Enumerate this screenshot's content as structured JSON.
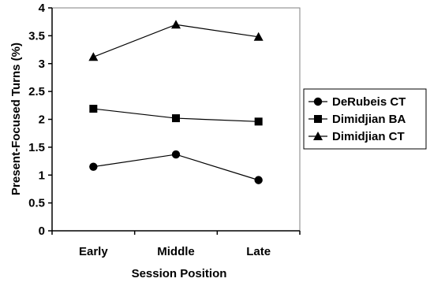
{
  "chart_data": {
    "type": "line",
    "title": "",
    "xlabel": "Session Position",
    "ylabel": "Present-Focused Turns (%)",
    "categories": [
      "Early",
      "Middle",
      "Late"
    ],
    "ylim": [
      0,
      4
    ],
    "yticks": [
      "0",
      "0.5",
      "1",
      "1.5",
      "2",
      "2.5",
      "3",
      "3.5",
      "4"
    ],
    "grid": false,
    "legend_position": "right",
    "series": [
      {
        "name": "DeRubeis CT",
        "marker": "circle",
        "values": [
          1.15,
          1.37,
          0.91
        ]
      },
      {
        "name": "Dimidjian BA",
        "marker": "square",
        "values": [
          2.19,
          2.02,
          1.96
        ]
      },
      {
        "name": "Dimidjian CT",
        "marker": "triangle",
        "values": [
          3.12,
          3.7,
          3.48
        ]
      }
    ],
    "colors": {
      "line": "#000000",
      "marker": "#000000",
      "background": "#ffffff"
    }
  }
}
